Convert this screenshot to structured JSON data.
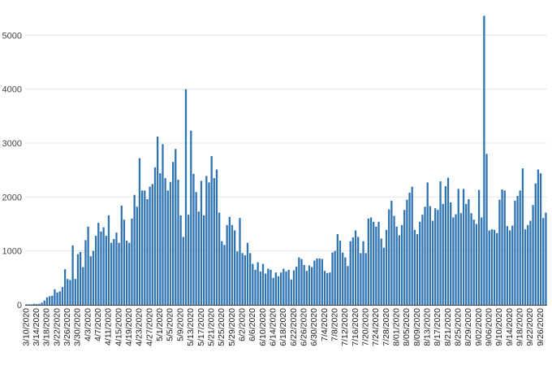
{
  "chart_data": {
    "type": "bar",
    "title": "",
    "xlabel": "",
    "ylabel": "",
    "ylim": [
      0,
      5400
    ],
    "yticks": [
      0,
      1000,
      2000,
      3000,
      4000,
      5000
    ],
    "grid": "horizontal",
    "legend": "none",
    "bar_color": "#2f73b0",
    "start_date": "3/10/2020",
    "tick_every_days": 4,
    "xtick_labels": [
      "3/10/2020",
      "3/14/2020",
      "3/18/2020",
      "3/22/2020",
      "3/26/2020",
      "3/30/2020",
      "4/3/2020",
      "4/7/2020",
      "4/11/2020",
      "4/15/2020",
      "4/19/2020",
      "4/23/2020",
      "4/27/2020",
      "5/1/2020",
      "5/5/2020",
      "5/9/2020",
      "5/13/2020",
      "5/17/2020",
      "5/21/2020",
      "5/25/2020",
      "5/29/2020",
      "6/2/2020",
      "6/6/2020",
      "6/10/2020",
      "6/14/2020",
      "6/18/2020",
      "6/22/2020",
      "6/26/2020",
      "6/30/2020",
      "7/4/2020",
      "7/8/2020",
      "7/12/2020",
      "7/16/2020",
      "7/20/2020",
      "7/24/2020",
      "7/28/2020",
      "8/01/2020",
      "8/05/2020",
      "8/09/2020",
      "8/13/2020",
      "8/17/2020",
      "8/21/2020",
      "8/25/2020",
      "8/29/2020",
      "9/02/2020",
      "9/06/2020",
      "9/10/2020",
      "9/14/2020",
      "9/18/2020",
      "9/22/2020",
      "9/26/2020"
    ],
    "values": [
      10,
      10,
      10,
      20,
      15,
      20,
      40,
      80,
      140,
      160,
      170,
      290,
      230,
      250,
      330,
      660,
      480,
      460,
      1100,
      480,
      940,
      980,
      700,
      1200,
      1450,
      900,
      1000,
      1280,
      1520,
      1360,
      1440,
      1280,
      1660,
      1150,
      1220,
      1340,
      1150,
      1840,
      1580,
      1190,
      1150,
      1600,
      2040,
      1820,
      2720,
      2120,
      2120,
      1960,
      2190,
      2240,
      2550,
      3120,
      2440,
      2980,
      2350,
      2120,
      2280,
      2650,
      2890,
      2320,
      1660,
      1260,
      4000,
      1670,
      3230,
      2430,
      2090,
      1730,
      2300,
      1660,
      2390,
      2270,
      2760,
      2350,
      2510,
      1710,
      1180,
      1110,
      1480,
      1630,
      1480,
      1380,
      990,
      1610,
      960,
      920,
      1150,
      960,
      760,
      650,
      790,
      620,
      760,
      580,
      670,
      650,
      500,
      600,
      530,
      600,
      670,
      620,
      650,
      470,
      640,
      710,
      880,
      850,
      740,
      630,
      730,
      700,
      820,
      860,
      860,
      850,
      630,
      590,
      600,
      970,
      1000,
      1310,
      1190,
      970,
      880,
      720,
      1180,
      1250,
      1380,
      1260,
      960,
      1180,
      960,
      1600,
      1620,
      1540,
      1450,
      1540,
      1230,
      1060,
      1390,
      1770,
      1930,
      1650,
      1450,
      1290,
      1480,
      1760,
      1950,
      2080,
      2190,
      1390,
      1310,
      1540,
      1670,
      1820,
      2270,
      1830,
      1560,
      1790,
      1760,
      2290,
      1870,
      2200,
      2360,
      1900,
      1620,
      1680,
      2150,
      1700,
      2150,
      1870,
      1960,
      1700,
      1580,
      1500,
      2130,
      1620,
      5360,
      2800,
      1380,
      1400,
      1390,
      1330,
      1950,
      2140,
      2120,
      1460,
      1380,
      1470,
      1930,
      2020,
      2120,
      2530,
      1400,
      1480,
      1560,
      1850,
      2250,
      2510,
      2440,
      1610,
      1710
    ]
  }
}
